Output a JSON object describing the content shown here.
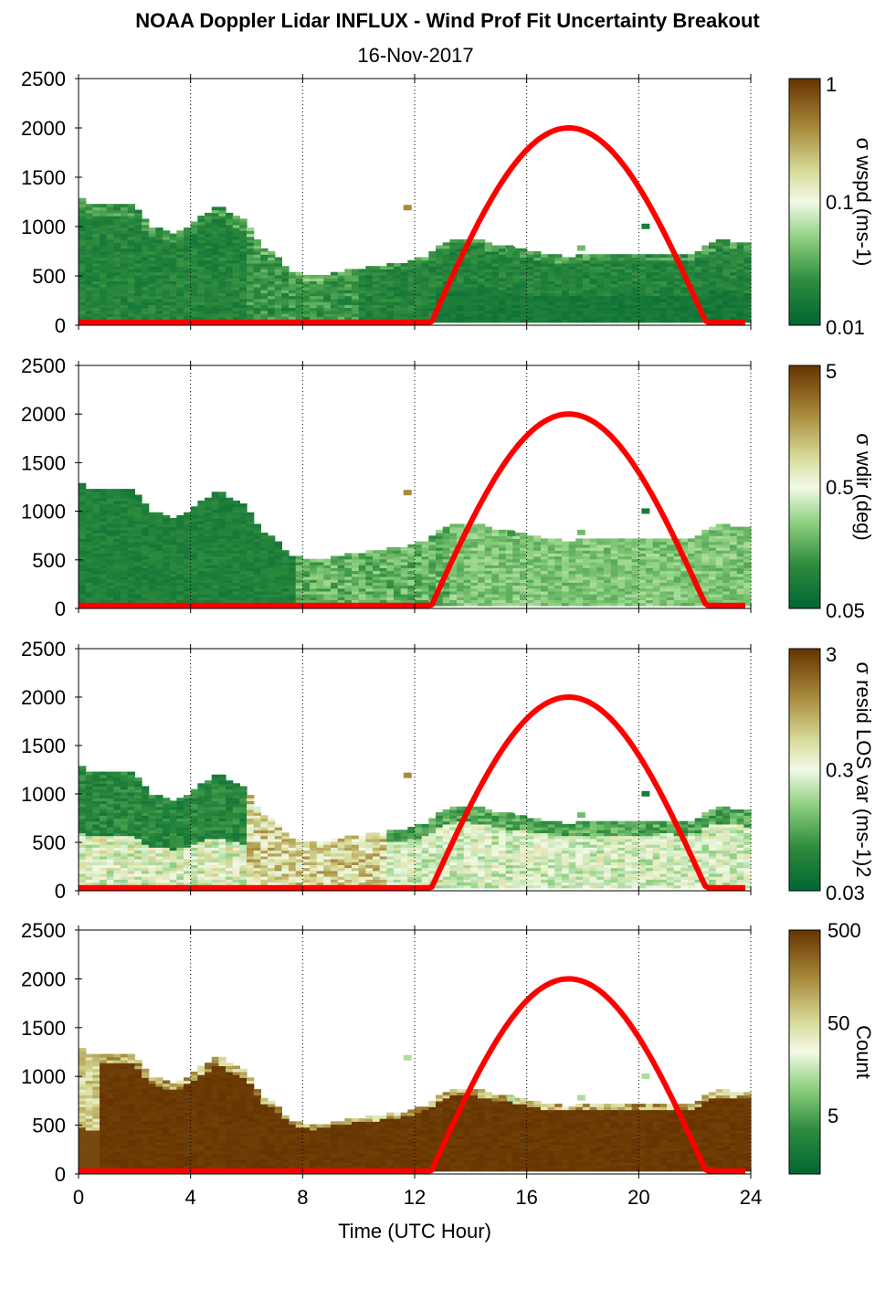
{
  "title": "NOAA Doppler Lidar INFLUX - Wind Prof Fit Uncertainty Breakout",
  "subtitle": "16-Nov-2017",
  "chart_data": [
    {
      "type": "heatmap",
      "panel": "sigma_wspd",
      "colorbar_label": "σ wspd (ms-1)",
      "colorbar_ticks": [
        "1",
        "0.1",
        "0.01"
      ],
      "colorbar_range": [
        0.01,
        1
      ],
      "colorbar_scale": "log",
      "xlim": [
        0,
        24
      ],
      "ylim": [
        0,
        2500
      ],
      "yticks": [
        "0",
        "500",
        "1000",
        "1500",
        "2000",
        "2500"
      ],
      "xtick_values": [
        0,
        4,
        8,
        12,
        16,
        20,
        24
      ],
      "vertical_grid": "dotted at 4,8,12,16,20,24"
    },
    {
      "type": "heatmap",
      "panel": "sigma_wdir",
      "colorbar_label": "σ wdir (deg)",
      "colorbar_ticks": [
        "5",
        "0.5",
        "0.05"
      ],
      "colorbar_range": [
        0.05,
        5
      ],
      "colorbar_scale": "log",
      "xlim": [
        0,
        24
      ],
      "ylim": [
        0,
        2500
      ],
      "yticks": [
        "0",
        "500",
        "1000",
        "1500",
        "2000",
        "2500"
      ]
    },
    {
      "type": "heatmap",
      "panel": "sigma_resid_los_var",
      "colorbar_label": "σ resid LOS var (ms-1)2",
      "colorbar_ticks": [
        "3",
        "0.3",
        "0.03"
      ],
      "colorbar_range": [
        0.03,
        3
      ],
      "colorbar_scale": "log",
      "xlim": [
        0,
        24
      ],
      "ylim": [
        0,
        2500
      ],
      "yticks": [
        "0",
        "500",
        "1000",
        "1500",
        "2000",
        "2500"
      ]
    },
    {
      "type": "heatmap",
      "panel": "count",
      "colorbar_label": "Count",
      "colorbar_ticks": [
        "500",
        "50",
        "5"
      ],
      "colorbar_range": [
        1,
        500
      ],
      "colorbar_scale": "log",
      "xlim": [
        0,
        24
      ],
      "ylim": [
        0,
        2500
      ],
      "yticks": [
        "0",
        "500",
        "1000",
        "1500",
        "2000",
        "2500"
      ],
      "xticks": [
        "0",
        "4",
        "8",
        "12",
        "16",
        "20",
        "24"
      ],
      "xlabel": "Time (UTC Hour)"
    }
  ],
  "data_top_height": {
    "hours": [
      0,
      0.5,
      1,
      1.5,
      2,
      2.5,
      3,
      3.5,
      4,
      4.5,
      5,
      5.5,
      6,
      6.5,
      7,
      7.5,
      8,
      8.5,
      9,
      9.5,
      10,
      10.5,
      11,
      11.5,
      12,
      12.5,
      13,
      13.5,
      14,
      14.5,
      15,
      15.5,
      16,
      16.5,
      17,
      17.5,
      18,
      18.5,
      19,
      19.5,
      20,
      20.5,
      21,
      21.5,
      22,
      22.5,
      23,
      23.5,
      23.8
    ],
    "height_m": [
      1320,
      1200,
      1220,
      1230,
      1220,
      1000,
      950,
      920,
      1000,
      1120,
      1200,
      1100,
      1050,
      800,
      700,
      550,
      500,
      480,
      520,
      540,
      560,
      580,
      600,
      620,
      650,
      700,
      820,
      870,
      860,
      840,
      800,
      780,
      750,
      720,
      700,
      680,
      700,
      710,
      700,
      700,
      700,
      700,
      720,
      700,
      720,
      820,
      850,
      830,
      820
    ]
  },
  "overlay_curve": {
    "name": "solar elevation",
    "color": "#ff0000",
    "rise_hour": 12.6,
    "peak_hour": 17.5,
    "set_hour": 22.4,
    "peak_height": 2000,
    "base_height": 30
  },
  "colors": {
    "dark_green": "#006633",
    "light": "#f0f7e0",
    "dark_brown": "#663300",
    "red": "#ff0000"
  }
}
